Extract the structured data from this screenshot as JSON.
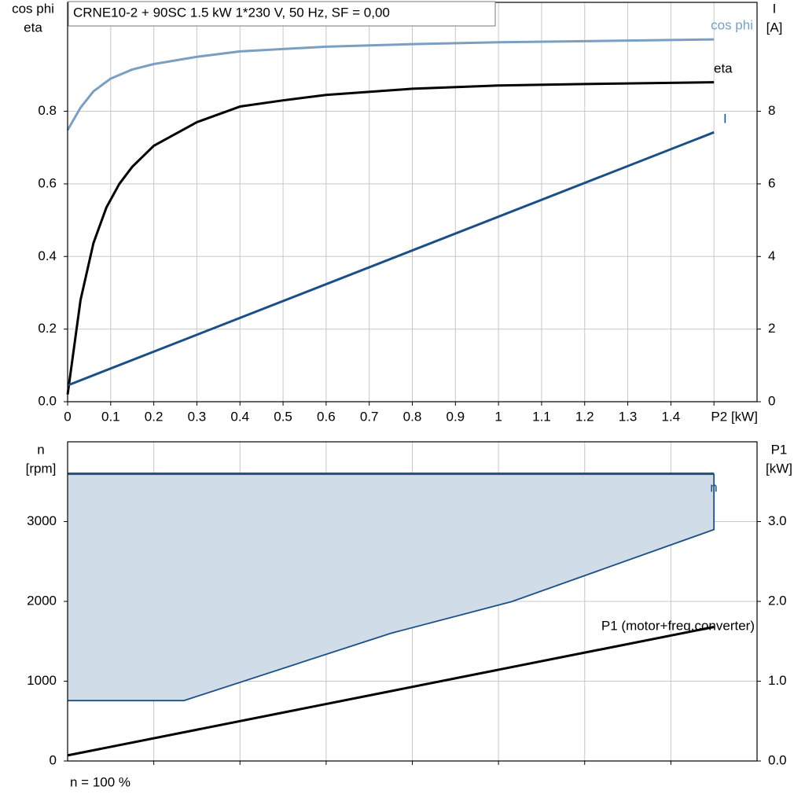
{
  "chart_data": [
    {
      "type": "line",
      "title": "CRNE10-2 + 90SC   1.5 kW   1*230 V, 50 Hz, SF = 0,00",
      "ylabel": [
        "cos phi",
        "eta"
      ],
      "y2label": [
        "I",
        "[A]"
      ],
      "xlim": [
        0,
        1.6
      ],
      "xticks": [
        0,
        0.1,
        0.2,
        0.3,
        0.4,
        0.5,
        0.6,
        0.7,
        0.8,
        0.9,
        1.0,
        1.1,
        1.2,
        1.3,
        1.4,
        {
          "value": 1.5,
          "label": "P2 [kW]"
        }
      ],
      "xtick_labels": true,
      "ylim": [
        0,
        1.1
      ],
      "yticks": [
        {
          "value": 0,
          "label": "0.0"
        },
        0.2,
        0.4,
        0.6,
        0.8
      ],
      "y2lim": [
        0,
        11
      ],
      "y2ticks": [
        0,
        2,
        4,
        6,
        8
      ],
      "grid": true,
      "series": [
        {
          "name": "cos phi",
          "color": "#7b9fc2",
          "x": [
            0,
            0.03,
            0.06,
            0.1,
            0.15,
            0.2,
            0.3,
            0.4,
            0.6,
            0.8,
            1.0,
            1.2,
            1.5
          ],
          "values": [
            0.748,
            0.81,
            0.855,
            0.89,
            0.915,
            0.93,
            0.95,
            0.965,
            0.978,
            0.985,
            0.99,
            0.993,
            0.998
          ]
        },
        {
          "name": "eta",
          "color": "#000000",
          "x": [
            0,
            0.03,
            0.06,
            0.09,
            0.12,
            0.15,
            0.2,
            0.3,
            0.4,
            0.5,
            0.6,
            0.8,
            1.0,
            1.2,
            1.5
          ],
          "values": [
            0.02,
            0.28,
            0.437,
            0.535,
            0.6,
            0.647,
            0.705,
            0.77,
            0.813,
            0.83,
            0.845,
            0.862,
            0.871,
            0.875,
            0.88
          ]
        },
        {
          "name": "I",
          "color": "#1b4f86",
          "axis": "y2",
          "x": [
            0,
            1.5
          ],
          "values": [
            0.45,
            7.42
          ]
        }
      ]
    },
    {
      "type": "line",
      "ylabel": [
        "n",
        "[rpm]"
      ],
      "y2label": [
        "P1",
        "[kW]"
      ],
      "note": "n = 100 %",
      "xlim": [
        0,
        1.6
      ],
      "xticks": [
        0.2,
        0.4,
        0.6,
        0.8,
        1.0,
        1.2,
        1.4
      ],
      "xtick_labels": false,
      "ylim": [
        0,
        4000
      ],
      "yticks": [
        0,
        1000,
        2000,
        3000
      ],
      "y2lim": [
        0,
        4
      ],
      "y2ticks": [
        {
          "value": 0,
          "label": "0.0"
        },
        {
          "value": 1,
          "label": "1.0"
        },
        {
          "value": 2,
          "label": "2.0"
        },
        {
          "value": 3,
          "label": "3.0"
        }
      ],
      "grid": true,
      "area_lower": {
        "color": "#1b4f86",
        "fill": "#d0dce8",
        "x": [
          0,
          0.27,
          0.75,
          1.03,
          1.5
        ],
        "values": [
          757,
          757,
          1600,
          1996,
          2900
        ]
      },
      "series": [
        {
          "name": "n",
          "color": "#1b4f86",
          "x": [
            0,
            1.5
          ],
          "values": [
            3600,
            3600
          ]
        },
        {
          "name": "P1 (motor+freq.converter)",
          "color": "#000000",
          "axis": "y2",
          "x": [
            0,
            1.5
          ],
          "values": [
            0.07,
            1.68
          ]
        }
      ]
    }
  ]
}
